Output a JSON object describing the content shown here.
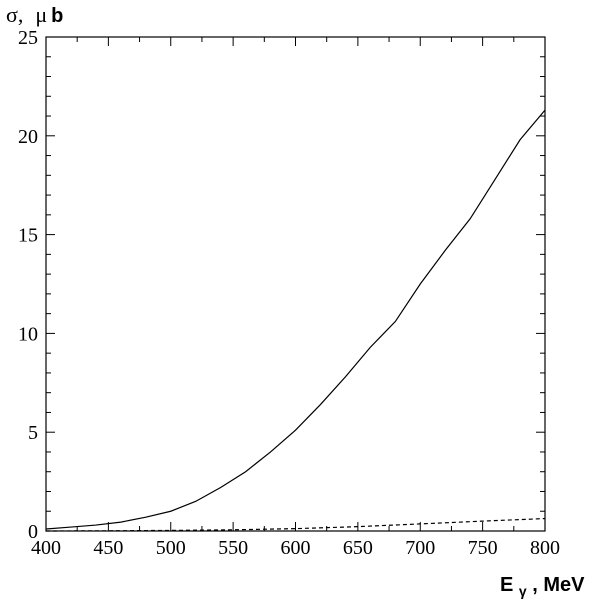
{
  "chart_data": {
    "type": "line",
    "xlabel": "E_γ, MeV",
    "xlabel_main": "E",
    "xlabel_sub": "γ",
    "xlabel_rest": ", MeV",
    "ylabel": "σ, μb",
    "ylabel_sym": "σ,",
    "ylabel_mu": "μ",
    "ylabel_b": "b",
    "xlim": [
      400,
      800
    ],
    "ylim": [
      0,
      25
    ],
    "xticks": [
      "400",
      "450",
      "500",
      "550",
      "600",
      "650",
      "700",
      "750",
      "800"
    ],
    "yticks": [
      "0",
      "5",
      "10",
      "15",
      "20",
      "25"
    ],
    "grid": false,
    "series": [
      {
        "style": "solid",
        "x": [
          400,
          420,
          440,
          460,
          480,
          500,
          520,
          540,
          560,
          580,
          600,
          620,
          640,
          660,
          680,
          700,
          720,
          740,
          760,
          780,
          800
        ],
        "y": [
          0.1,
          0.2,
          0.3,
          0.45,
          0.7,
          1.0,
          1.5,
          2.2,
          3.0,
          4.0,
          5.1,
          6.4,
          7.8,
          9.3,
          10.6,
          12.5,
          14.2,
          15.8,
          17.8,
          19.8,
          21.3
        ]
      },
      {
        "style": "dashed",
        "x": [
          400,
          450,
          500,
          550,
          600,
          650,
          700,
          750,
          800
        ],
        "y": [
          0.0,
          0.01,
          0.03,
          0.06,
          0.12,
          0.22,
          0.36,
          0.5,
          0.63
        ]
      }
    ]
  }
}
